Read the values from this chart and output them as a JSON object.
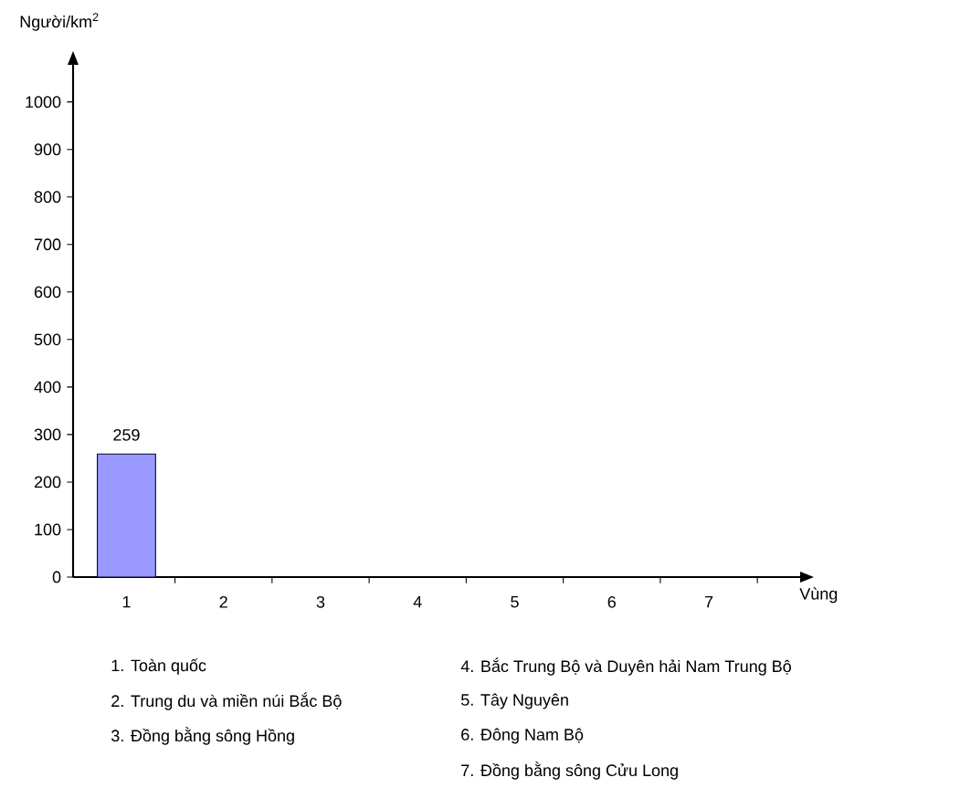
{
  "chart_data": {
    "type": "bar",
    "categories": [
      "1",
      "2",
      "3",
      "4",
      "5",
      "6",
      "7"
    ],
    "values": [
      259,
      null,
      null,
      null,
      null,
      null,
      null
    ],
    "color": "#9999ff",
    "data_labels": true,
    "ylabel": "Người/km$^{2}$",
    "xlabel": "Vùng",
    "ylim": [
      0,
      1080
    ],
    "yticks": [
      0,
      100,
      200,
      300,
      400,
      500,
      600,
      700,
      800,
      900,
      1000
    ],
    "annotations": [
      "1. Toàn quốc",
      "2. Trung du và miền núi Bắc Bộ",
      "3. Đồng bằng sông Hồng",
      "4. Bắc Trung Bộ và Duyên hải Nam Trung Bộ",
      "5. Tây Nguyên",
      "6. Đông Nam Bộ",
      "7. Đồng bằng sông Cửu Long"
    ]
  }
}
